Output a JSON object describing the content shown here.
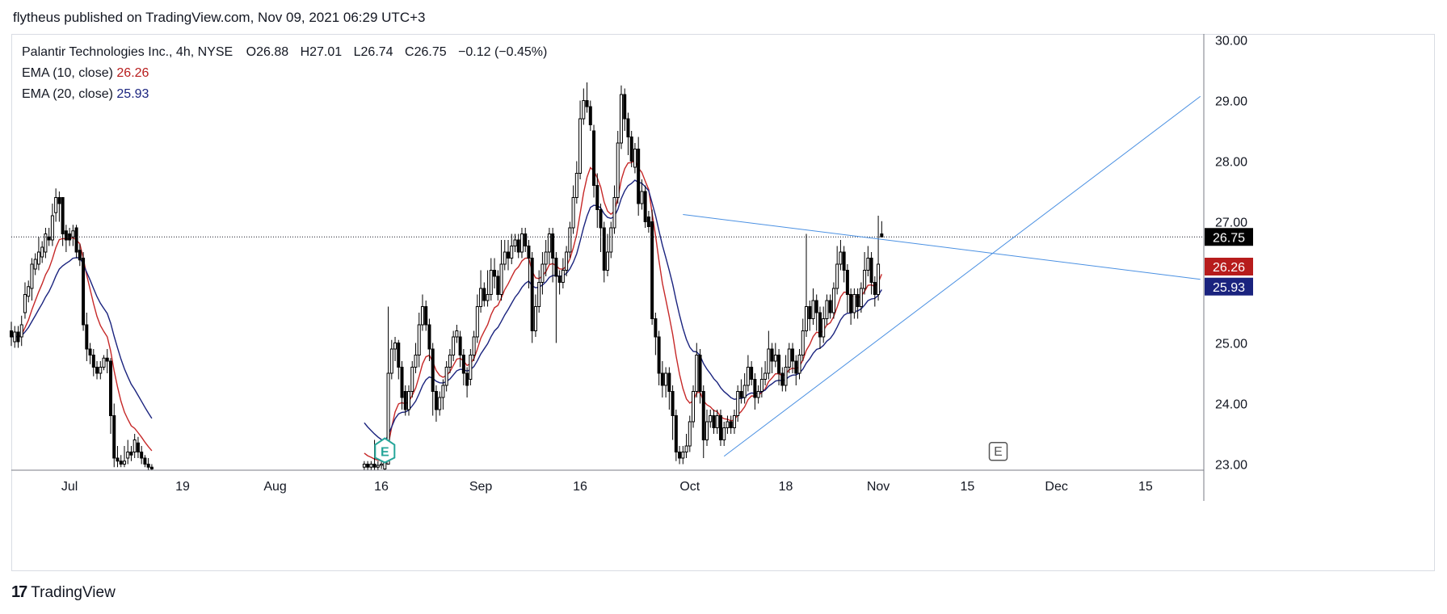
{
  "header": {
    "published_text": "flytheus published on TradingView.com, Nov 09, 2021 06:29 UTC+3"
  },
  "legend": {
    "symbol": "Palantir Technologies Inc., 4h, NYSE",
    "ohlc": {
      "open": "O26.88",
      "high": "H27.01",
      "low": "L26.74",
      "close": "C26.75",
      "change": "−0.12 (−0.45%)"
    },
    "ema10": {
      "label": "EMA (10, close)",
      "value": "26.26"
    },
    "ema20": {
      "label": "EMA (20, close)",
      "value": "25.93"
    }
  },
  "footer": {
    "brand": "TradingView",
    "logo_text": "17"
  },
  "colors": {
    "up_fill": "#ffffff",
    "down_fill": "#000000",
    "ema10": "#c62828",
    "ema20": "#1a237e",
    "trendline": "#4a90e2",
    "last_price_bg": "#000000",
    "ema10_badge_bg": "#b71c1c",
    "ema20_badge_bg": "#1a237e",
    "earnings_green": "#26a69a",
    "earnings_gray": "#555555"
  },
  "chart_data": {
    "type": "candlestick",
    "title": "Palantir Technologies Inc., 4h, NYSE",
    "price_axis": {
      "ticks": [
        30.0,
        29.0,
        28.0,
        27.0,
        26.0,
        25.0,
        24.0,
        23.0
      ],
      "tick_labels": [
        "30.00",
        "29.00",
        "28.00",
        "27.00",
        "26.00",
        "25.00",
        "24.00",
        "23.00"
      ],
      "range": [
        22.9,
        30.1
      ]
    },
    "time_axis": {
      "tick_labels": [
        "Jul",
        "19",
        "Aug",
        "16",
        "Sep",
        "16",
        "Oct",
        "18",
        "Nov",
        "15",
        "Dec",
        "15"
      ],
      "tick_bars": [
        4,
        37,
        64,
        95,
        124,
        153,
        185,
        213,
        240,
        266,
        292,
        318
      ],
      "bar_range": [
        -13,
        335
      ]
    },
    "last_price": {
      "value": 26.75,
      "label": "26.75"
    },
    "ema10_badge": {
      "value": 26.26,
      "label": "26.26"
    },
    "ema20_badge": {
      "value": 25.93,
      "label": "25.93"
    },
    "earnings_markers": [
      {
        "bar": 96,
        "price": 23.08,
        "label": "E",
        "style": "past"
      },
      {
        "bar": 275,
        "price": 23.09,
        "label": "E",
        "style": "future"
      }
    ],
    "trendlines": [
      {
        "name": "descending-resistance",
        "from": {
          "bar": 183,
          "price": 27.12
        },
        "to": {
          "bar": 334,
          "price": 26.05
        }
      },
      {
        "name": "ascending-support",
        "from": {
          "bar": 195,
          "price": 23.13
        },
        "to": {
          "bar": 334,
          "price": 29.07
        }
      }
    ],
    "sparse_anchors": [
      [
        -13,
        25.2,
        25.1,
        25.35,
        24.95
      ],
      [
        -10,
        25.1,
        25.3,
        25.45,
        24.95
      ],
      [
        -9,
        25.5,
        25.8,
        26.0,
        25.4
      ],
      [
        -7,
        25.9,
        26.3,
        26.4,
        25.7
      ],
      [
        -5,
        26.3,
        26.5,
        26.75,
        26.2
      ],
      [
        -3,
        26.5,
        26.8,
        26.9,
        26.4
      ],
      [
        -2,
        26.75,
        26.7,
        26.9,
        26.6
      ],
      [
        -1,
        26.7,
        27.1,
        27.3,
        26.6
      ],
      [
        0,
        27.15,
        27.4,
        27.55,
        27.0
      ],
      [
        1,
        27.4,
        27.3,
        27.5,
        27.0
      ],
      [
        2,
        27.4,
        26.8,
        27.4,
        26.6
      ],
      [
        3,
        26.85,
        26.7,
        26.95,
        26.5
      ],
      [
        4,
        26.8,
        26.7,
        26.9,
        26.6
      ],
      [
        5,
        26.75,
        26.85,
        26.95,
        26.6
      ],
      [
        6,
        26.9,
        26.5,
        26.95,
        26.4
      ],
      [
        8,
        26.4,
        25.3,
        26.5,
        25.2
      ],
      [
        9,
        25.3,
        24.9,
        25.5,
        24.7
      ],
      [
        10,
        24.9,
        24.8,
        25.0,
        24.65
      ],
      [
        11,
        24.8,
        24.6,
        24.9,
        24.45
      ],
      [
        12,
        24.6,
        24.5,
        24.7,
        24.4
      ],
      [
        13,
        24.5,
        24.6,
        24.7,
        24.4
      ],
      [
        14,
        24.6,
        24.75,
        24.8,
        24.55
      ],
      [
        15,
        24.75,
        24.7,
        24.9,
        24.5
      ],
      [
        16,
        24.7,
        23.8,
        24.75,
        23.5
      ],
      [
        17,
        23.8,
        23.1,
        24.0,
        22.95
      ],
      [
        18,
        23.1,
        23.05,
        23.3,
        22.95
      ],
      [
        19,
        23.05,
        23.0,
        23.15,
        22.95
      ],
      [
        20,
        23.0,
        23.05,
        23.3,
        22.95
      ],
      [
        21,
        23.1,
        23.2,
        23.4,
        23.0
      ],
      [
        22,
        23.2,
        23.15,
        23.3,
        23.05
      ],
      [
        23,
        23.2,
        23.4,
        23.5,
        23.1
      ],
      [
        24,
        23.35,
        23.2,
        23.45,
        23.1
      ],
      [
        25,
        23.2,
        23.1,
        23.3,
        23.0
      ],
      [
        26,
        23.1,
        23.0,
        23.15,
        22.95
      ],
      [
        27,
        23.0,
        22.95,
        23.1,
        22.9
      ],
      [
        28,
        22.95,
        22.92,
        23.0,
        22.9
      ],
      [
        90,
        22.95,
        23.0,
        23.05,
        22.9
      ],
      [
        91,
        23.0,
        22.95,
        23.05,
        22.9
      ],
      [
        92,
        22.95,
        23.0,
        23.05,
        22.9
      ],
      [
        93,
        23.0,
        22.95,
        23.4,
        22.9
      ],
      [
        94,
        22.95,
        22.98,
        23.05,
        22.9
      ],
      [
        95,
        22.98,
        23.0,
        23.1,
        22.92
      ],
      [
        97,
        23.0,
        24.5,
        25.6,
        23.6
      ],
      [
        98,
        24.5,
        24.9,
        25.05,
        24.4
      ],
      [
        99,
        24.9,
        25.0,
        25.1,
        24.7
      ],
      [
        100,
        25.0,
        24.6,
        25.05,
        24.4
      ],
      [
        101,
        24.6,
        24.1,
        24.7,
        23.9
      ],
      [
        102,
        24.2,
        23.9,
        24.3,
        23.8
      ],
      [
        103,
        23.9,
        24.2,
        24.3,
        23.8
      ],
      [
        104,
        24.2,
        24.6,
        24.7,
        24.1
      ],
      [
        105,
        24.6,
        24.8,
        25.0,
        24.5
      ],
      [
        106,
        24.8,
        25.3,
        25.5,
        24.6
      ],
      [
        107,
        25.3,
        25.6,
        25.8,
        25.2
      ],
      [
        108,
        25.6,
        25.3,
        25.7,
        25.2
      ],
      [
        109,
        25.3,
        24.9,
        25.4,
        24.7
      ],
      [
        110,
        24.9,
        24.2,
        25.0,
        23.8
      ],
      [
        111,
        24.2,
        23.9,
        24.3,
        23.7
      ],
      [
        112,
        23.9,
        24.1,
        24.2,
        23.8
      ],
      [
        113,
        24.1,
        24.3,
        24.4,
        23.9
      ],
      [
        114,
        24.3,
        24.6,
        24.7,
        24.2
      ],
      [
        115,
        24.6,
        24.8,
        24.9,
        24.5
      ],
      [
        116,
        24.8,
        25.1,
        25.2,
        24.7
      ],
      [
        117,
        25.1,
        25.2,
        25.3,
        25.0
      ],
      [
        118,
        25.1,
        24.8,
        25.2,
        24.6
      ],
      [
        119,
        24.8,
        24.5,
        24.9,
        24.3
      ],
      [
        120,
        24.5,
        24.3,
        24.6,
        24.1
      ],
      [
        121,
        24.4,
        24.8,
        24.9,
        24.3
      ],
      [
        122,
        24.8,
        25.1,
        25.2,
        24.7
      ],
      [
        123,
        25.1,
        25.6,
        25.8,
        25.0
      ],
      [
        124,
        25.6,
        25.9,
        26.2,
        25.5
      ],
      [
        125,
        25.9,
        25.7,
        26.0,
        25.6
      ],
      [
        126,
        25.7,
        25.8,
        26.2,
        25.6
      ],
      [
        127,
        25.8,
        26.2,
        26.4,
        25.7
      ],
      [
        128,
        26.2,
        26.1,
        26.4,
        25.9
      ],
      [
        129,
        26.1,
        25.8,
        26.2,
        25.7
      ],
      [
        130,
        25.8,
        26.3,
        26.7,
        25.7
      ],
      [
        131,
        26.3,
        26.5,
        26.7,
        26.2
      ],
      [
        132,
        26.5,
        26.4,
        26.7,
        26.2
      ],
      [
        133,
        26.4,
        26.6,
        26.8,
        26.3
      ],
      [
        134,
        26.6,
        26.7,
        26.8,
        26.5
      ],
      [
        135,
        26.7,
        26.5,
        26.8,
        26.4
      ],
      [
        136,
        26.5,
        26.8,
        26.9,
        26.4
      ],
      [
        137,
        26.8,
        26.6,
        26.9,
        26.5
      ],
      [
        138,
        26.6,
        26.4,
        26.7,
        25.9
      ],
      [
        139,
        26.4,
        25.2,
        26.5,
        25.0
      ],
      [
        140,
        25.2,
        25.6,
        25.8,
        25.1
      ],
      [
        141,
        25.6,
        26.0,
        26.2,
        25.5
      ],
      [
        142,
        26.0,
        26.3,
        26.5,
        25.8
      ],
      [
        143,
        26.3,
        26.5,
        26.7,
        26.1
      ],
      [
        144,
        26.5,
        26.8,
        26.9,
        26.3
      ],
      [
        145,
        26.8,
        26.4,
        26.9,
        26.0
      ],
      [
        146,
        26.4,
        26.1,
        26.5,
        25.0
      ],
      [
        147,
        26.1,
        26.0,
        26.2,
        25.8
      ],
      [
        148,
        26.0,
        26.2,
        26.4,
        25.9
      ],
      [
        149,
        26.2,
        26.5,
        26.6,
        26.1
      ],
      [
        150,
        26.5,
        26.9,
        27.0,
        26.4
      ],
      [
        151,
        26.9,
        27.4,
        27.6,
        26.8
      ],
      [
        152,
        27.4,
        27.8,
        28.0,
        27.3
      ],
      [
        153,
        27.8,
        28.7,
        29.0,
        27.7
      ],
      [
        154,
        28.7,
        29.0,
        29.2,
        28.6
      ],
      [
        155,
        29.0,
        28.9,
        29.3,
        28.8
      ],
      [
        156,
        28.9,
        28.6,
        29.0,
        28.5
      ],
      [
        157,
        28.5,
        27.6,
        28.6,
        27.4
      ],
      [
        158,
        27.6,
        27.2,
        27.8,
        26.9
      ],
      [
        159,
        27.2,
        26.9,
        27.3,
        26.5
      ],
      [
        160,
        26.9,
        26.2,
        27.0,
        26.0
      ],
      [
        161,
        26.2,
        26.5,
        26.8,
        26.1
      ],
      [
        162,
        26.5,
        26.9,
        27.0,
        26.4
      ],
      [
        163,
        26.9,
        27.4,
        27.6,
        26.8
      ],
      [
        164,
        27.4,
        28.3,
        28.5,
        27.3
      ],
      [
        165,
        28.3,
        29.1,
        29.25,
        28.2
      ],
      [
        166,
        29.1,
        28.7,
        29.2,
        28.5
      ],
      [
        167,
        28.7,
        28.4,
        28.8,
        28.1
      ],
      [
        168,
        28.4,
        28.0,
        28.5,
        27.9
      ],
      [
        169,
        27.9,
        28.2,
        28.3,
        27.8
      ],
      [
        170,
        28.2,
        27.3,
        28.4,
        27.1
      ],
      [
        171,
        27.3,
        27.5,
        27.7,
        27.2
      ],
      [
        172,
        27.5,
        27.0,
        27.6,
        26.9
      ],
      [
        174,
        27.0,
        25.4,
        27.2,
        25.3
      ],
      [
        175,
        25.4,
        25.1,
        25.5,
        24.8
      ],
      [
        176,
        25.1,
        24.5,
        25.2,
        24.3
      ],
      [
        177,
        24.5,
        24.3,
        24.7,
        24.1
      ],
      [
        178,
        24.3,
        24.5,
        24.6,
        24.1
      ],
      [
        179,
        24.5,
        24.2,
        24.6,
        23.9
      ],
      [
        180,
        24.2,
        23.8,
        24.3,
        23.4
      ],
      [
        181,
        23.8,
        23.2,
        23.9,
        23.05
      ],
      [
        182,
        23.2,
        23.1,
        23.3,
        23.0
      ],
      [
        183,
        23.1,
        23.2,
        23.3,
        23.0
      ],
      [
        184,
        23.2,
        23.3,
        23.5,
        23.1
      ],
      [
        185,
        23.3,
        23.7,
        23.8,
        23.2
      ],
      [
        186,
        23.7,
        24.2,
        24.3,
        23.6
      ],
      [
        187,
        24.2,
        24.8,
        25.0,
        24.1
      ],
      [
        188,
        24.8,
        24.2,
        24.9,
        24.0
      ],
      [
        189,
        24.2,
        23.4,
        24.3,
        23.1
      ],
      [
        190,
        23.4,
        23.7,
        23.9,
        23.3
      ],
      [
        191,
        23.7,
        23.8,
        23.9,
        23.6
      ],
      [
        192,
        23.8,
        23.6,
        23.9,
        23.5
      ],
      [
        193,
        23.6,
        23.8,
        23.9,
        23.5
      ],
      [
        194,
        23.8,
        23.4,
        23.9,
        23.3
      ],
      [
        195,
        23.4,
        23.6,
        23.7,
        23.3
      ],
      [
        196,
        23.6,
        23.7,
        23.8,
        23.5
      ],
      [
        197,
        23.7,
        23.6,
        23.8,
        23.5
      ],
      [
        198,
        23.6,
        23.8,
        23.9,
        23.5
      ],
      [
        199,
        23.8,
        24.2,
        24.3,
        23.7
      ],
      [
        200,
        24.2,
        24.1,
        24.4,
        24.0
      ],
      [
        201,
        24.1,
        24.3,
        24.5,
        24.0
      ],
      [
        202,
        24.3,
        24.6,
        24.8,
        24.2
      ],
      [
        203,
        24.6,
        24.4,
        24.7,
        24.3
      ],
      [
        204,
        24.4,
        24.1,
        24.5,
        23.9
      ],
      [
        205,
        24.1,
        24.2,
        24.3,
        24.0
      ],
      [
        206,
        24.2,
        24.4,
        24.6,
        24.1
      ],
      [
        207,
        24.4,
        24.5,
        24.7,
        24.3
      ],
      [
        208,
        24.5,
        24.9,
        25.2,
        24.4
      ],
      [
        209,
        24.9,
        24.7,
        25.0,
        24.5
      ],
      [
        210,
        24.7,
        24.8,
        25.0,
        24.6
      ],
      [
        211,
        24.8,
        24.5,
        24.9,
        24.3
      ],
      [
        212,
        24.5,
        24.3,
        24.6,
        24.2
      ],
      [
        213,
        24.3,
        24.6,
        24.8,
        24.2
      ],
      [
        214,
        24.6,
        24.9,
        25.0,
        24.5
      ],
      [
        215,
        24.9,
        24.7,
        25.0,
        24.5
      ],
      [
        216,
        24.7,
        24.5,
        24.8,
        24.3
      ],
      [
        217,
        24.5,
        24.8,
        24.9,
        24.4
      ],
      [
        218,
        24.8,
        25.2,
        25.4,
        24.7
      ],
      [
        219,
        25.2,
        25.6,
        26.8,
        25.1
      ],
      [
        220,
        25.6,
        25.4,
        25.7,
        25.2
      ],
      [
        221,
        25.4,
        25.7,
        25.9,
        25.3
      ],
      [
        222,
        25.7,
        25.5,
        25.8,
        25.2
      ],
      [
        223,
        25.5,
        25.1,
        25.6,
        24.9
      ],
      [
        224,
        25.1,
        25.4,
        25.6,
        25.0
      ],
      [
        225,
        25.4,
        25.7,
        25.8,
        25.3
      ],
      [
        226,
        25.7,
        25.5,
        25.8,
        25.4
      ],
      [
        227,
        25.5,
        25.9,
        26.0,
        25.4
      ],
      [
        228,
        25.9,
        26.3,
        26.6,
        25.8
      ],
      [
        229,
        26.3,
        26.5,
        26.7,
        26.2
      ],
      [
        230,
        26.5,
        26.2,
        26.6,
        26.0
      ],
      [
        231,
        26.2,
        25.8,
        26.3,
        25.5
      ],
      [
        232,
        25.8,
        25.5,
        25.9,
        25.3
      ],
      [
        233,
        25.5,
        25.8,
        25.9,
        25.4
      ],
      [
        234,
        25.8,
        25.6,
        25.9,
        25.4
      ],
      [
        235,
        25.6,
        25.9,
        26.0,
        25.5
      ],
      [
        236,
        25.9,
        26.2,
        26.5,
        25.8
      ],
      [
        237,
        26.2,
        26.4,
        26.6,
        26.1
      ],
      [
        238,
        26.4,
        26.0,
        26.5,
        25.8
      ],
      [
        239,
        26.0,
        25.8,
        26.1,
        25.6
      ],
      [
        240,
        25.8,
        26.3,
        27.1,
        25.7
      ],
      [
        241,
        26.8,
        26.75,
        27.01,
        26.74
      ]
    ]
  }
}
